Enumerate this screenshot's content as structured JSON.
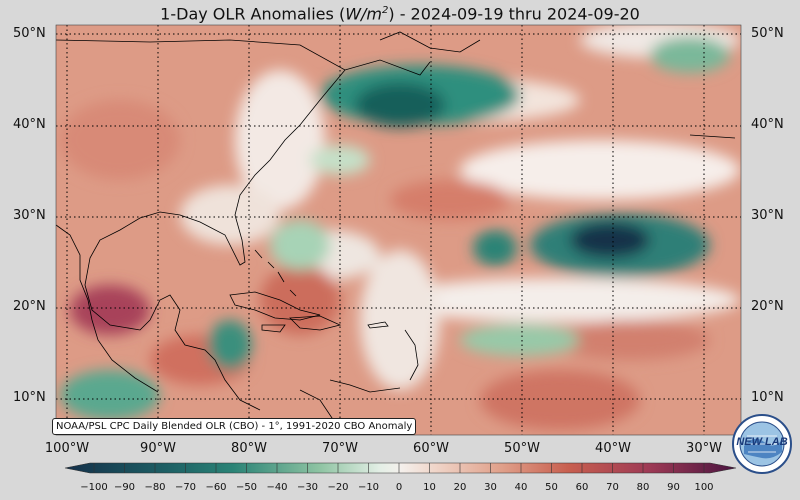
{
  "title": {
    "prefix": "1-Day OLR Anomalies (",
    "unit_base": "W/m",
    "unit_exp": "2",
    "suffix": ") - 2024-09-19 thru 2024-09-20"
  },
  "lat_labels": [
    "50°N",
    "40°N",
    "30°N",
    "20°N",
    "10°N"
  ],
  "lon_labels": [
    "100°W",
    "90°W",
    "80°W",
    "70°W",
    "60°W",
    "50°W",
    "40°W",
    "30°W"
  ],
  "source_note": "NOAA/PSL CPC Daily Blended OLR (CBO) - 1°, 1991-2020 CBO Anomaly",
  "colorbar": {
    "ticks": [
      "−100",
      "−90",
      "−80",
      "−70",
      "−60",
      "−50",
      "−40",
      "−30",
      "−20",
      "−10",
      "0",
      "10",
      "20",
      "30",
      "40",
      "50",
      "60",
      "70",
      "80",
      "90",
      "100"
    ],
    "range": [
      -100,
      100
    ],
    "colors": {
      "strong_negative": "#14304a",
      "negative": "#1f7a6e",
      "weak_negative": "#a8d3b4",
      "neutral": "#f4f0ec",
      "weak_positive": "#e6a68f",
      "positive": "#c85f4f",
      "strong_positive": "#6b1d4a"
    }
  },
  "logo": {
    "text": "NEW LAB",
    "icon": "noaa-lab-globe-logo"
  }
}
